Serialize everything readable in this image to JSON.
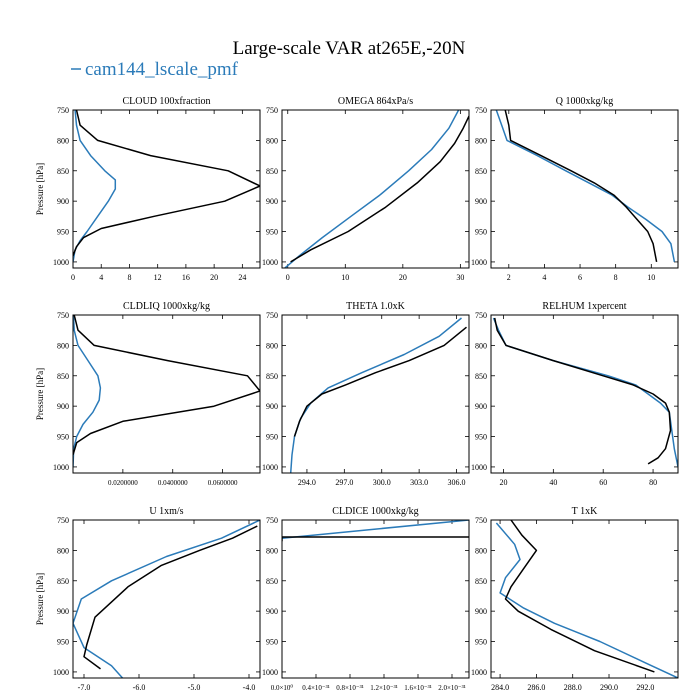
{
  "figure": {
    "title": "Large-scale VAR at265E,-20N",
    "legend_label": "cam144_lscale_pmf",
    "colors": {
      "series_a": "#2b7bb9",
      "series_b": "#000000"
    }
  },
  "chart_data": [
    {
      "type": "line",
      "title": "CLOUD  100xfraction",
      "ylabel": "Pressure [hPa]",
      "xlim": [
        0,
        26.5
      ],
      "ylim": [
        1010,
        750
      ],
      "grid": false,
      "xticks": [
        0,
        4,
        8,
        12,
        16,
        20,
        24
      ],
      "xtick_labels": [
        "0",
        "4",
        "8",
        "12",
        "16",
        "20",
        "24"
      ],
      "yticks": [
        750,
        800,
        850,
        900,
        950,
        1000
      ],
      "series": [
        {
          "color": "#2b7bb9",
          "x": [
            0.3,
            0.5,
            1.0,
            2.5,
            4.5,
            6.0,
            6.0,
            5.0,
            3.5,
            2.0,
            1.0,
            0.3,
            0.0
          ],
          "y": [
            750,
            775,
            800,
            825,
            850,
            865,
            880,
            900,
            925,
            950,
            965,
            980,
            1000
          ]
        },
        {
          "color": "#000000",
          "x": [
            0.5,
            1.0,
            3.5,
            11.0,
            22.0,
            26.5,
            21.5,
            11.5,
            4.0,
            1.5,
            0.5,
            0.0
          ],
          "y": [
            750,
            775,
            800,
            825,
            850,
            875,
            900,
            925,
            945,
            960,
            975,
            990
          ]
        }
      ]
    },
    {
      "type": "line",
      "title": "OMEGA  864xPa/s",
      "ylabel": "",
      "xlim": [
        -1,
        31.5
      ],
      "ylim": [
        1010,
        750
      ],
      "grid": false,
      "xticks": [
        0,
        10,
        20,
        30
      ],
      "xtick_labels": [
        "0",
        "10",
        "20",
        "30"
      ],
      "yticks": [
        750,
        800,
        850,
        900,
        950,
        1000
      ],
      "series": [
        {
          "color": "#2b7bb9",
          "x": [
            -0.5,
            2.0,
            6.0,
            11.0,
            16.0,
            21.0,
            25.0,
            28.0,
            29.7
          ],
          "y": [
            1010,
            990,
            960,
            925,
            890,
            850,
            815,
            780,
            750
          ]
        },
        {
          "color": "#000000",
          "x": [
            0.5,
            4.0,
            10.5,
            17.0,
            22.5,
            26.5,
            29.0,
            30.5,
            31.5
          ],
          "y": [
            1000,
            980,
            950,
            910,
            870,
            835,
            805,
            780,
            760
          ]
        }
      ]
    },
    {
      "type": "line",
      "title": "Q  1000xkg/kg",
      "ylabel": "",
      "xlim": [
        1,
        11.5
      ],
      "ylim": [
        1010,
        750
      ],
      "grid": false,
      "xticks": [
        2,
        4,
        6,
        8,
        10
      ],
      "xtick_labels": [
        "2",
        "4",
        "6",
        "8",
        "10"
      ],
      "yticks": [
        750,
        800,
        850,
        900,
        950,
        1000
      ],
      "series": [
        {
          "color": "#2b7bb9",
          "x": [
            1.3,
            1.6,
            1.9,
            3.6,
            5.2,
            6.5,
            7.8,
            8.7,
            9.7,
            10.6,
            11.1,
            11.3
          ],
          "y": [
            750,
            775,
            800,
            825,
            850,
            870,
            890,
            910,
            930,
            950,
            970,
            1000
          ]
        },
        {
          "color": "#000000",
          "x": [
            1.8,
            2.0,
            2.1,
            3.8,
            5.5,
            6.8,
            7.9,
            8.6,
            9.2,
            9.8,
            10.1,
            10.3
          ],
          "y": [
            750,
            775,
            800,
            825,
            850,
            870,
            890,
            910,
            930,
            950,
            970,
            1000
          ]
        }
      ]
    },
    {
      "type": "line",
      "title": "CLDLIQ  1000xkg/kg",
      "ylabel": "Pressure [hPa]",
      "xlim": [
        0,
        0.075
      ],
      "ylim": [
        1010,
        750
      ],
      "grid": false,
      "xticks": [
        0.02,
        0.04,
        0.06
      ],
      "xtick_labels": [
        "0.0200000",
        "0.0400000",
        "0.0600000"
      ],
      "yticks": [
        750,
        800,
        850,
        900,
        950,
        1000
      ],
      "series": [
        {
          "color": "#2b7bb9",
          "x": [
            0.0002,
            0.0005,
            0.002,
            0.006,
            0.01,
            0.011,
            0.0105,
            0.008,
            0.004,
            0.0015,
            0.0003,
            0.0
          ],
          "y": [
            750,
            775,
            800,
            825,
            850,
            870,
            890,
            910,
            930,
            950,
            970,
            1000
          ]
        },
        {
          "color": "#000000",
          "x": [
            0.0005,
            0.002,
            0.0085,
            0.038,
            0.07,
            0.075,
            0.0565,
            0.02,
            0.007,
            0.0015,
            0.0
          ],
          "y": [
            750,
            775,
            800,
            825,
            850,
            875,
            900,
            925,
            945,
            960,
            980
          ]
        }
      ]
    },
    {
      "type": "line",
      "title": "THETA  1.0xK",
      "ylabel": "",
      "xlim": [
        292,
        307
      ],
      "ylim": [
        1010,
        750
      ],
      "grid": false,
      "xticks": [
        294.0,
        297.0,
        300.0,
        303.0,
        306.0
      ],
      "xtick_labels": [
        "294.0",
        "297.0",
        "300.0",
        "303.0",
        "306.0"
      ],
      "yticks": [
        750,
        800,
        850,
        900,
        950,
        1000
      ],
      "series": [
        {
          "color": "#2b7bb9",
          "x": [
            292.7,
            292.8,
            293.0,
            293.5,
            294.3,
            295.7,
            298.4,
            301.8,
            304.6,
            306.4
          ],
          "y": [
            1010,
            980,
            950,
            920,
            895,
            870,
            845,
            815,
            785,
            755
          ]
        },
        {
          "color": "#000000",
          "x": [
            293.0,
            293.4,
            294.0,
            295.2,
            297.1,
            299.5,
            302.2,
            305.0,
            306.8
          ],
          "y": [
            950,
            925,
            900,
            880,
            865,
            845,
            825,
            800,
            770
          ]
        }
      ]
    },
    {
      "type": "line",
      "title": "RELHUM  1xpercent",
      "ylabel": "",
      "xlim": [
        15,
        90
      ],
      "ylim": [
        1010,
        750
      ],
      "grid": false,
      "xticks": [
        20,
        40,
        60,
        80
      ],
      "xtick_labels": [
        "20",
        "40",
        "60",
        "80"
      ],
      "yticks": [
        750,
        800,
        850,
        900,
        950,
        1000
      ],
      "series": [
        {
          "color": "#2b7bb9",
          "x": [
            16.0,
            18.0,
            21.0,
            40.0,
            62.0,
            73.0,
            78.0,
            83.0,
            86.5,
            87.5,
            88.5,
            90.0
          ],
          "y": [
            755,
            775,
            800,
            825,
            850,
            865,
            880,
            895,
            910,
            940,
            970,
            1000
          ]
        },
        {
          "color": "#000000",
          "x": [
            16.5,
            17.5,
            21.0,
            40.0,
            60.0,
            72.0,
            80.0,
            85.0,
            86.5,
            87.0,
            85.0,
            82.0,
            78.0
          ],
          "y": [
            755,
            775,
            800,
            825,
            850,
            865,
            880,
            895,
            910,
            940,
            970,
            985,
            995
          ]
        }
      ]
    },
    {
      "type": "line",
      "title": "U  1xm/s",
      "ylabel": "Pressure [hPa]",
      "xlim": [
        -7.2,
        -3.8
      ],
      "ylim": [
        1010,
        750
      ],
      "grid": false,
      "xticks": [
        -7.0,
        -6.0,
        -5.0,
        -4.0
      ],
      "xtick_labels": [
        "-7.0",
        "-6.0",
        "-5.0",
        "-4.0"
      ],
      "yticks": [
        750,
        800,
        850,
        900,
        950,
        1000
      ],
      "series": [
        {
          "color": "#2b7bb9",
          "x": [
            -6.3,
            -6.5,
            -7.0,
            -7.2,
            -7.05,
            -6.5,
            -5.5,
            -4.5,
            -3.8
          ],
          "y": [
            1010,
            990,
            960,
            920,
            880,
            850,
            810,
            780,
            750
          ]
        },
        {
          "color": "#000000",
          "x": [
            -6.7,
            -7.0,
            -6.95,
            -6.8,
            -6.2,
            -5.6,
            -4.9,
            -4.3,
            -3.85
          ],
          "y": [
            995,
            975,
            955,
            910,
            860,
            825,
            800,
            780,
            760
          ]
        }
      ]
    },
    {
      "type": "line",
      "title": "CLDICE  1000xkg/kg",
      "ylabel": "",
      "xlim": [
        0,
        2.2e-31
      ],
      "ylim": [
        1010,
        750
      ],
      "grid": false,
      "xticks": [
        0,
        4e-32,
        8e-32,
        1.2e-31,
        1.6e-31,
        2e-31
      ],
      "xtick_labels": [
        "0.0×10⁰",
        "0.4×10⁻³¹",
        "0.8×10⁻³¹",
        "1.2×10⁻³¹",
        "1.6×10⁻³¹",
        "2.0×10⁻³¹"
      ],
      "yticks": [
        750,
        800,
        850,
        900,
        950,
        1000
      ],
      "series": [
        {
          "color": "#2b7bb9",
          "x": [
            0,
            1.1e-31,
            2.2e-31
          ],
          "y": [
            780,
            765,
            750
          ]
        },
        {
          "color": "#000000",
          "x": [
            0,
            0,
            2.2e-31
          ],
          "y": [
            785,
            778,
            778
          ]
        }
      ]
    },
    {
      "type": "line",
      "title": "T  1xK",
      "ylabel": "",
      "xlim": [
        283.5,
        293.8
      ],
      "ylim": [
        1010,
        750
      ],
      "grid": false,
      "xticks": [
        284.0,
        286.0,
        288.0,
        290.0,
        292.0
      ],
      "xtick_labels": [
        "284.0",
        "286.0",
        "288.0",
        "290.0",
        "292.0"
      ],
      "yticks": [
        750,
        800,
        850,
        900,
        950,
        1000
      ],
      "series": [
        {
          "color": "#2b7bb9",
          "x": [
            283.8,
            284.8,
            285.1,
            284.3,
            284.0,
            285.3,
            287.0,
            289.5,
            292.0,
            293.8
          ],
          "y": [
            755,
            790,
            815,
            845,
            870,
            895,
            920,
            950,
            985,
            1010
          ]
        },
        {
          "color": "#000000",
          "x": [
            284.6,
            285.2,
            286.0,
            285.3,
            284.6,
            284.3,
            285.0,
            286.8,
            289.2,
            292.5
          ],
          "y": [
            750,
            775,
            800,
            830,
            860,
            880,
            900,
            930,
            965,
            1000
          ]
        }
      ]
    }
  ]
}
